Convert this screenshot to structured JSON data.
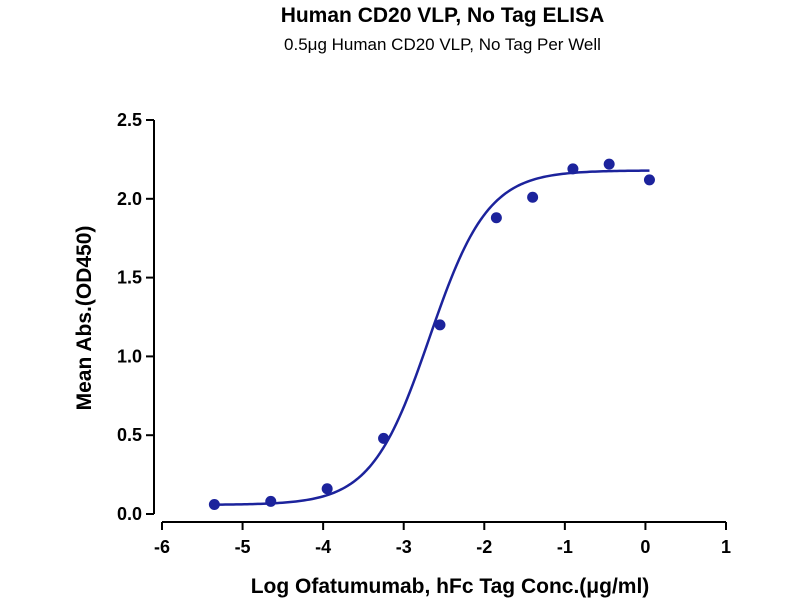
{
  "chart_data": {
    "type": "scatter",
    "title": "Human CD20 VLP, No Tag ELISA",
    "subtitle": "0.5μg Human CD20 VLP, No Tag Per Well",
    "xlabel": "Log Ofatumumab, hFc Tag Conc.(μg/ml)",
    "ylabel": "Mean Abs.(OD450)",
    "xlim": [
      -6,
      1
    ],
    "ylim": [
      0,
      2.5
    ],
    "xticks": [
      "-6",
      "-5",
      "-4",
      "-3",
      "-2",
      "-1",
      "0",
      "1"
    ],
    "yticks": [
      "0.0",
      "0.5",
      "1.0",
      "1.5",
      "2.0",
      "2.5"
    ],
    "grid": false,
    "legend": "none",
    "color": "#1c239c",
    "series": [
      {
        "x": [
          -5.35,
          -4.65,
          -3.95,
          -3.25,
          -2.55,
          -1.85,
          -1.4,
          -0.9,
          -0.45,
          0.05
        ],
        "y": [
          0.06,
          0.08,
          0.16,
          0.48,
          1.2,
          1.88,
          2.01,
          2.19,
          2.22,
          2.12
        ]
      }
    ],
    "fit_curve": {
      "model": "4PL",
      "bottom": 0.058,
      "top": 2.18,
      "log_ec50": -2.68,
      "hill_slope": 1.2
    }
  }
}
